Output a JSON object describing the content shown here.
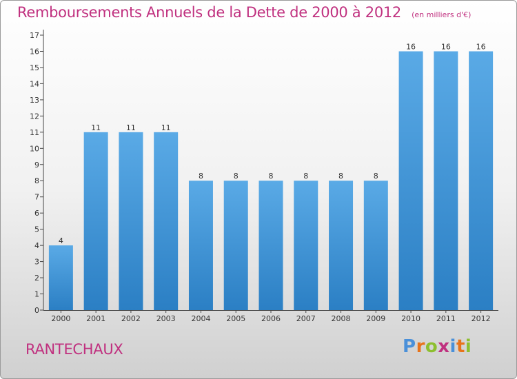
{
  "title": "Remboursements Annuels de la Dette de 2000 à 2012",
  "unit": "(en milliers d'€)",
  "commune": "RANTECHAUX",
  "logo": {
    "text": "Proxiti",
    "colors": [
      "#4a90d9",
      "#e8731a",
      "#8dbf2f",
      "#c0307f",
      "#4a90d9",
      "#e8731a",
      "#8dbf2f"
    ]
  },
  "colors": {
    "title": "#c0307f",
    "bar_light": "#5aaae6",
    "bar_dark": "#2b7fc4"
  },
  "chart_data": {
    "type": "bar",
    "categories": [
      "2000",
      "2001",
      "2002",
      "2003",
      "2004",
      "2005",
      "2006",
      "2007",
      "2008",
      "2009",
      "2010",
      "2011",
      "2012"
    ],
    "values": [
      4,
      11,
      11,
      11,
      8,
      8,
      8,
      8,
      8,
      8,
      16,
      16,
      16
    ],
    "ylim": [
      0,
      17
    ],
    "yticks": [
      0,
      1,
      2,
      3,
      4,
      5,
      6,
      7,
      8,
      9,
      10,
      11,
      12,
      13,
      14,
      15,
      16,
      17
    ],
    "grid": false,
    "data_labels": true
  }
}
